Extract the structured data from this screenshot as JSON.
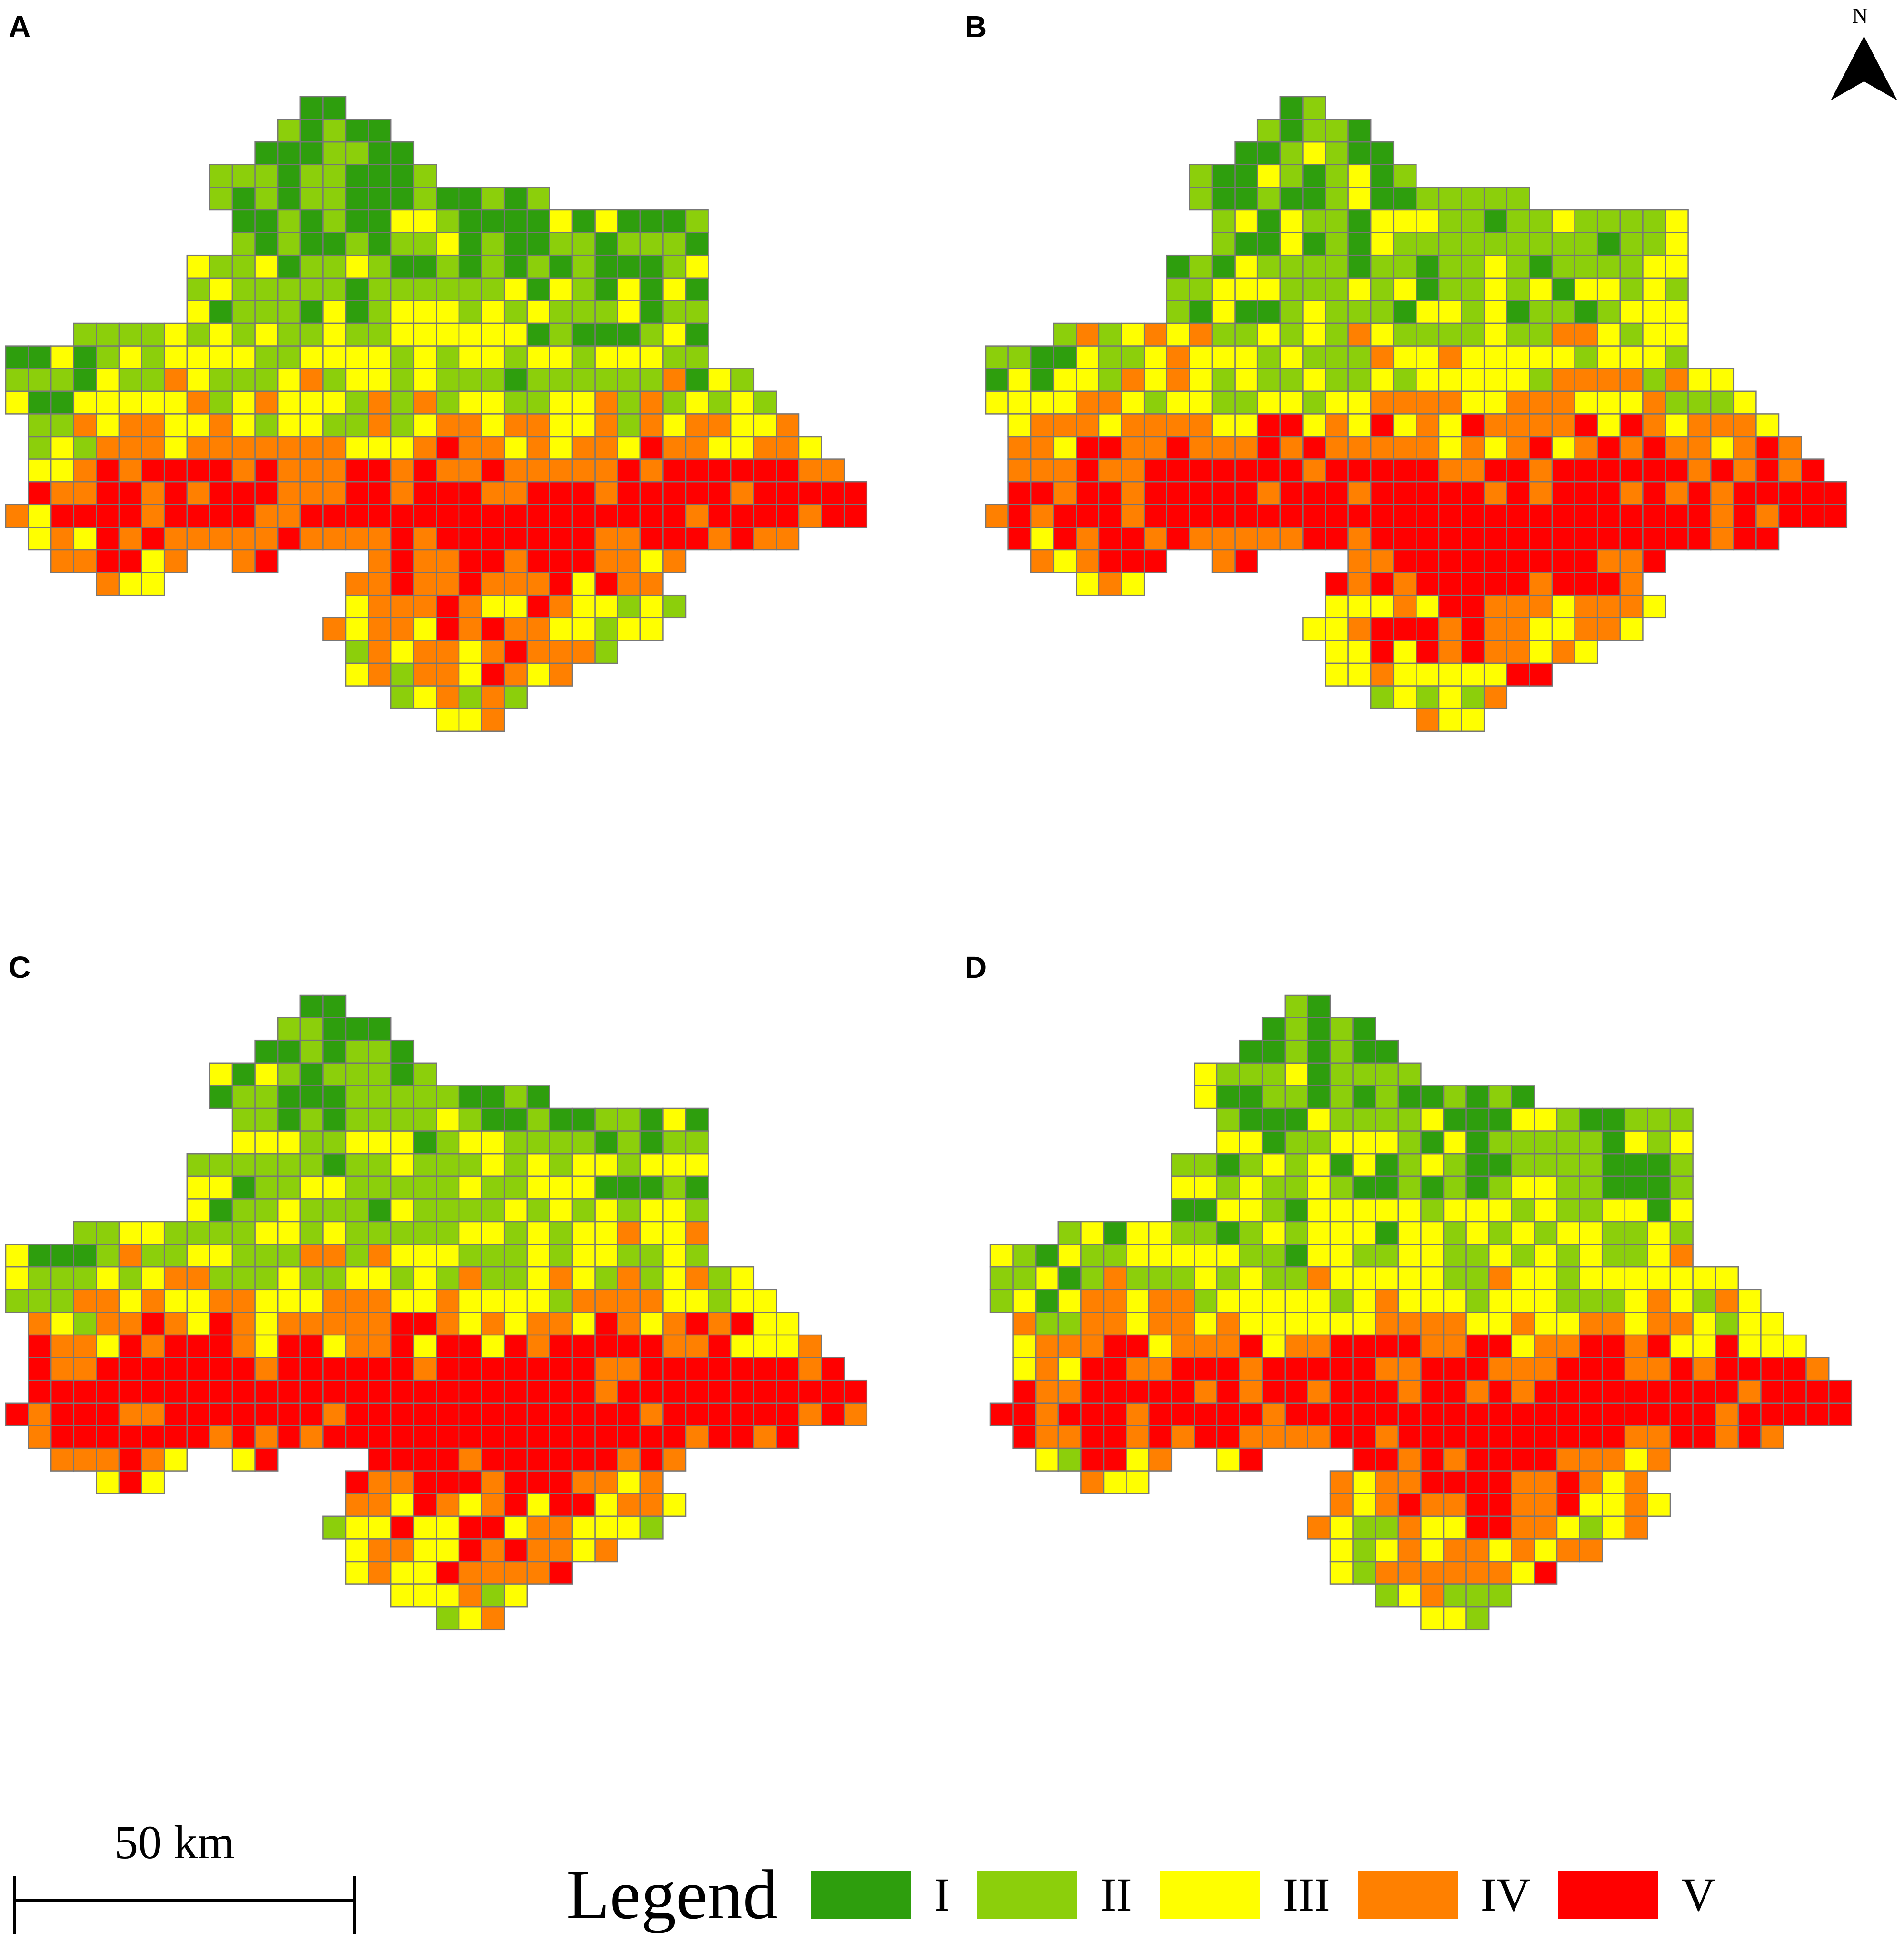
{
  "panels": [
    {
      "id": "A",
      "label": "A"
    },
    {
      "id": "B",
      "label": "B"
    },
    {
      "id": "C",
      "label": "C"
    },
    {
      "id": "D",
      "label": "D"
    }
  ],
  "north_arrow": {
    "letter": "N",
    "icon": "north-arrow-icon"
  },
  "scale_bar": {
    "label": "50 km"
  },
  "legend": {
    "title": "Legend",
    "classes": [
      {
        "label": "I",
        "color": "#2e9e0d"
      },
      {
        "label": "II",
        "color": "#8ccf0b"
      },
      {
        "label": "III",
        "color": "#ffff00"
      },
      {
        "label": "IV",
        "color": "#ff8000"
      },
      {
        "label": "V",
        "color": "#ff0000"
      }
    ]
  },
  "grid_line_color": "#777777"
}
